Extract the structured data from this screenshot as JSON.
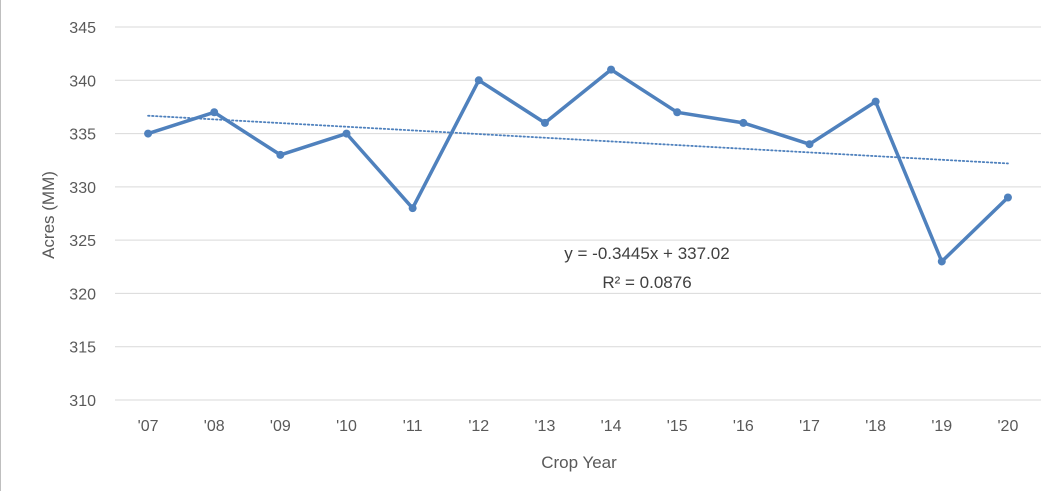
{
  "chart_data": {
    "type": "line",
    "title": "",
    "xlabel": "Crop Year",
    "ylabel": "Acres (MM)",
    "categories": [
      "'07",
      "'08",
      "'09",
      "'10",
      "'11",
      "'12",
      "'13",
      "'14",
      "'15",
      "'16",
      "'17",
      "'18",
      "'19",
      "'20"
    ],
    "series": [
      {
        "values": [
          335,
          337,
          333,
          335,
          328,
          340,
          336,
          341,
          337,
          336,
          334,
          338,
          323,
          329
        ]
      }
    ],
    "trendline": {
      "type": "linear",
      "slope": -0.3445,
      "intercept": 337.02,
      "equation_label": "y = -0.3445x + 337.02",
      "r2_label": "R² = 0.0876"
    },
    "ylim": [
      310,
      345
    ],
    "yticks": [
      310,
      315,
      320,
      325,
      330,
      335,
      340,
      345
    ],
    "grid": true,
    "legend": "none",
    "colors": {
      "series": "#4f81bd",
      "trendline": "#4f81bd",
      "grid": "#d9d9d9",
      "text": "#595959"
    }
  }
}
